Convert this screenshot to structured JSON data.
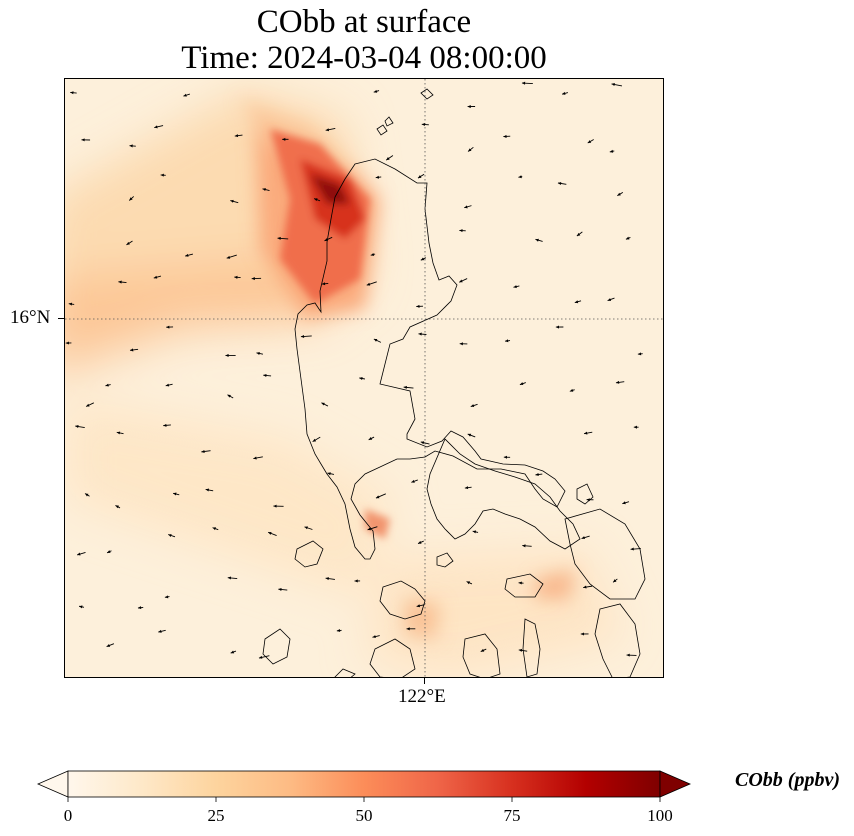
{
  "title": {
    "line1": "CObb at surface",
    "line2": "Time: 2024-03-04 08:00:00"
  },
  "axes": {
    "lat_label": "16°N",
    "lon_label": "122°E",
    "gridline_style": "dotted"
  },
  "colorbar": {
    "label": "CObb (ppbv)",
    "colormap": "OrRd",
    "range": [
      0,
      100
    ],
    "ticks": [
      "0",
      "25",
      "50",
      "75",
      "100"
    ],
    "extend": "both",
    "orientation": "horizontal"
  },
  "colors": {
    "low": "#fff7ec",
    "mid_low": "#fdd49e",
    "mid": "#fc8d59",
    "high": "#d7301f",
    "max": "#7f0000",
    "coastline": "#000000",
    "wind_arrow": "#000000"
  },
  "layers": [
    "concentration-field",
    "coastlines",
    "wind-vectors",
    "gridlines"
  ]
}
